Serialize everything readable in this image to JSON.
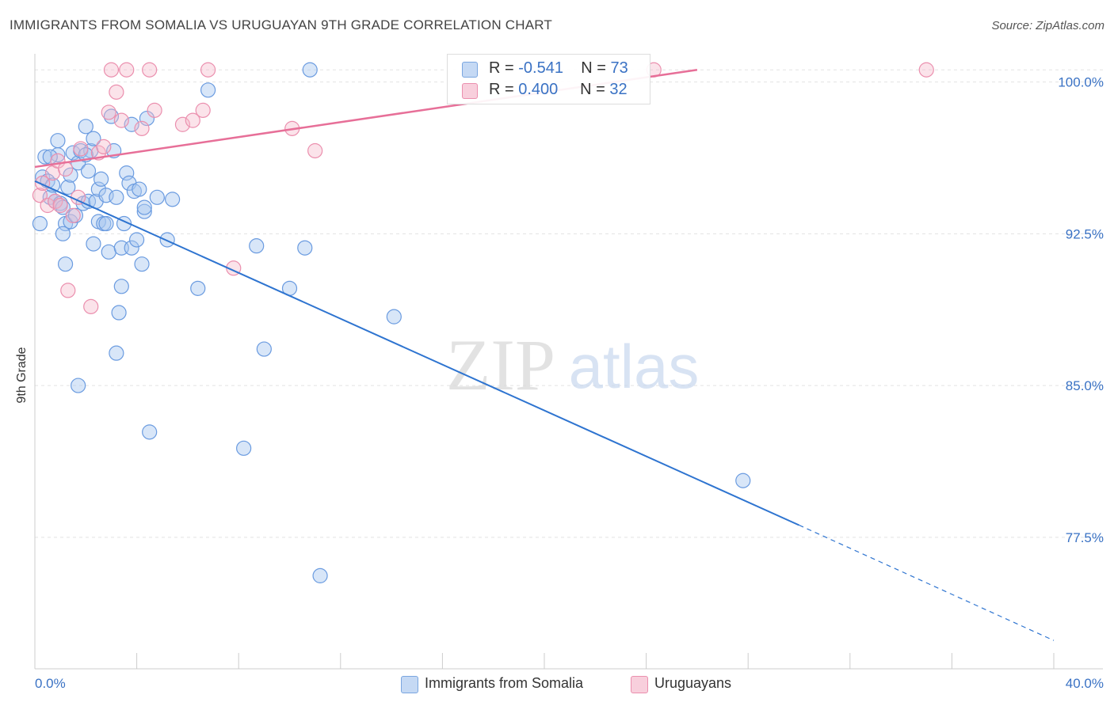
{
  "header": {
    "title": "IMMIGRANTS FROM SOMALIA VS URUGUAYAN 9TH GRADE CORRELATION CHART",
    "source": "Source: ZipAtlas.com"
  },
  "watermark": {
    "zip": "ZIP",
    "atlas": "atlas"
  },
  "legend_stats": [
    {
      "r_label": "R = ",
      "r_value": "-0.541",
      "n_label": "N = ",
      "n_value": "73",
      "color": "#a9c8f0"
    },
    {
      "r_label": "R = ",
      "r_value": "0.400",
      "n_label": "N = ",
      "n_value": "32",
      "color": "#f5b8cb"
    }
  ],
  "bottom_legend": [
    {
      "label": "Immigrants from Somalia",
      "color": "#a9c8f0"
    },
    {
      "label": "Uruguayans",
      "color": "#f5b8cb"
    }
  ],
  "chart_data": {
    "type": "scatter",
    "xlabel": "",
    "ylabel": "9th Grade",
    "x_range": [
      0,
      40
    ],
    "y_range": [
      71.0,
      101.0
    ],
    "x_tick_labels": [
      {
        "value": 0,
        "label": "0.0%"
      },
      {
        "value": 40,
        "label": "40.0%"
      }
    ],
    "y_tick_labels": [
      {
        "value": 100.0,
        "label": "100.0%"
      },
      {
        "value": 92.5,
        "label": "92.5%"
      },
      {
        "value": 85.0,
        "label": "85.0%"
      },
      {
        "value": 77.5,
        "label": "77.5%"
      }
    ],
    "grid": true,
    "legend": "top-center",
    "colors": {
      "blue": "#6a9be0",
      "blue_line": "#2e74d0",
      "pink": "#eb8fae",
      "pink_line": "#e76f98",
      "tick_label": "#3a72c4"
    },
    "series": [
      {
        "name": "Immigrants from Somalia",
        "trend": {
          "x0": 0.0,
          "y0": 95.1,
          "x1": 30.0,
          "y1": 78.1,
          "dash_to_x": 40.0,
          "dash_to_y": 72.4
        },
        "points": [
          [
            0.2,
            93.0
          ],
          [
            0.3,
            95.3
          ],
          [
            0.4,
            96.3
          ],
          [
            0.5,
            95.1
          ],
          [
            0.6,
            94.3
          ],
          [
            0.7,
            94.9
          ],
          [
            0.8,
            94.1
          ],
          [
            0.9,
            97.1
          ],
          [
            1.0,
            94.0
          ],
          [
            1.1,
            93.8
          ],
          [
            1.2,
            91.0
          ],
          [
            1.2,
            93.0
          ],
          [
            1.3,
            94.8
          ],
          [
            1.4,
            93.1
          ],
          [
            1.5,
            96.5
          ],
          [
            1.6,
            93.4
          ],
          [
            1.7,
            96.0
          ],
          [
            1.7,
            85.0
          ],
          [
            1.8,
            96.6
          ],
          [
            1.9,
            94.0
          ],
          [
            2.0,
            97.8
          ],
          [
            2.1,
            94.1
          ],
          [
            2.1,
            95.6
          ],
          [
            2.2,
            96.6
          ],
          [
            2.3,
            92.0
          ],
          [
            2.3,
            97.2
          ],
          [
            2.4,
            94.1
          ],
          [
            2.5,
            94.7
          ],
          [
            2.5,
            93.1
          ],
          [
            2.6,
            95.2
          ],
          [
            2.7,
            93.0
          ],
          [
            2.8,
            94.4
          ],
          [
            2.8,
            93.0
          ],
          [
            2.9,
            91.6
          ],
          [
            3.0,
            98.3
          ],
          [
            3.1,
            96.6
          ],
          [
            3.2,
            94.3
          ],
          [
            3.2,
            86.6
          ],
          [
            3.3,
            88.6
          ],
          [
            3.4,
            89.9
          ],
          [
            3.4,
            91.8
          ],
          [
            3.5,
            93.0
          ],
          [
            3.6,
            95.5
          ],
          [
            3.7,
            95.0
          ],
          [
            3.8,
            91.8
          ],
          [
            3.9,
            94.6
          ],
          [
            4.0,
            92.2
          ],
          [
            4.1,
            94.7
          ],
          [
            4.2,
            91.0
          ],
          [
            4.3,
            93.6
          ],
          [
            4.3,
            93.8
          ],
          [
            4.4,
            98.2
          ],
          [
            4.5,
            82.7
          ],
          [
            4.8,
            94.3
          ],
          [
            5.2,
            92.2
          ],
          [
            5.4,
            94.2
          ],
          [
            6.4,
            89.8
          ],
          [
            6.8,
            99.6
          ],
          [
            8.2,
            81.9
          ],
          [
            8.7,
            91.9
          ],
          [
            9.0,
            86.8
          ],
          [
            10.0,
            89.8
          ],
          [
            10.6,
            91.8
          ],
          [
            10.8,
            100.6
          ],
          [
            11.2,
            75.6
          ],
          [
            14.1,
            88.4
          ],
          [
            27.8,
            80.3
          ],
          [
            0.9,
            96.4
          ],
          [
            1.4,
            95.4
          ],
          [
            2.0,
            96.4
          ],
          [
            3.8,
            97.9
          ],
          [
            0.6,
            96.3
          ],
          [
            1.1,
            92.5
          ]
        ]
      },
      {
        "name": "Uruguayans",
        "trend": {
          "x0": 0.0,
          "y0": 95.8,
          "x1": 26.0,
          "y1": 100.6
        },
        "points": [
          [
            0.2,
            94.4
          ],
          [
            0.3,
            95.0
          ],
          [
            0.5,
            93.9
          ],
          [
            0.7,
            95.5
          ],
          [
            0.8,
            94.1
          ],
          [
            0.9,
            96.1
          ],
          [
            1.0,
            93.9
          ],
          [
            1.2,
            95.7
          ],
          [
            1.3,
            89.7
          ],
          [
            1.5,
            93.4
          ],
          [
            1.7,
            94.3
          ],
          [
            1.8,
            96.7
          ],
          [
            2.2,
            88.9
          ],
          [
            2.5,
            96.5
          ],
          [
            2.7,
            96.8
          ],
          [
            2.9,
            98.5
          ],
          [
            3.0,
            100.6
          ],
          [
            3.2,
            99.5
          ],
          [
            3.4,
            98.1
          ],
          [
            3.6,
            100.6
          ],
          [
            4.2,
            97.7
          ],
          [
            4.5,
            100.6
          ],
          [
            4.7,
            98.6
          ],
          [
            5.8,
            97.9
          ],
          [
            6.2,
            98.1
          ],
          [
            6.6,
            98.6
          ],
          [
            6.8,
            100.6
          ],
          [
            7.8,
            90.8
          ],
          [
            10.1,
            97.7
          ],
          [
            11.0,
            96.6
          ],
          [
            24.3,
            100.6
          ],
          [
            35.0,
            100.6
          ]
        ]
      }
    ]
  }
}
